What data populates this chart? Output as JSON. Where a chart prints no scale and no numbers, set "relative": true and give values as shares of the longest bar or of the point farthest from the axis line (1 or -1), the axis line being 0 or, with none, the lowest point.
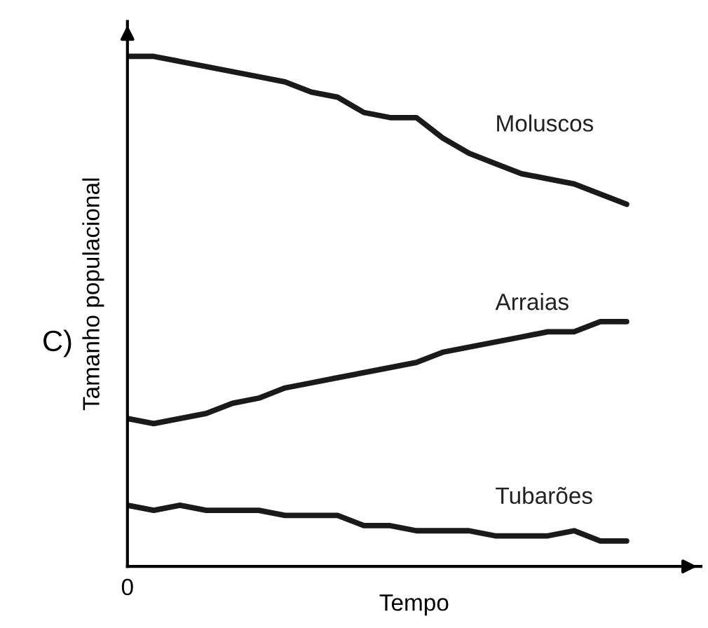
{
  "chart_data": {
    "type": "line",
    "relative": true,
    "xlabel": "Tempo",
    "ylabel": "Tamanho populacional",
    "annotations": [
      "C)",
      "0"
    ],
    "categories": [
      null,
      null,
      null,
      null,
      null,
      null,
      null,
      null,
      null,
      null,
      null,
      null,
      null,
      null,
      null,
      null,
      null,
      null,
      null,
      null
    ],
    "series": [
      {
        "name": "Moluscos",
        "color": "#1a1a1a",
        "values": [
          1.0,
          1.0,
          0.99,
          0.98,
          0.97,
          0.96,
          0.95,
          0.93,
          0.92,
          0.89,
          0.88,
          0.88,
          0.84,
          0.81,
          0.79,
          0.77,
          0.76,
          0.75,
          0.73,
          0.71
        ]
      },
      {
        "name": "Arraias",
        "color": "#1a1a1a",
        "values": [
          0.29,
          0.28,
          0.29,
          0.3,
          0.32,
          0.33,
          0.35,
          0.36,
          0.37,
          0.38,
          0.39,
          0.4,
          0.42,
          0.43,
          0.44,
          0.45,
          0.46,
          0.46,
          0.48,
          0.48
        ]
      },
      {
        "name": "Tubarões",
        "color": "#1a1a1a",
        "values": [
          0.12,
          0.11,
          0.12,
          0.11,
          0.11,
          0.11,
          0.1,
          0.1,
          0.1,
          0.08,
          0.08,
          0.07,
          0.07,
          0.07,
          0.06,
          0.06,
          0.06,
          0.07,
          0.05,
          0.05
        ]
      }
    ],
    "line_style": "solid",
    "marker": "none"
  }
}
